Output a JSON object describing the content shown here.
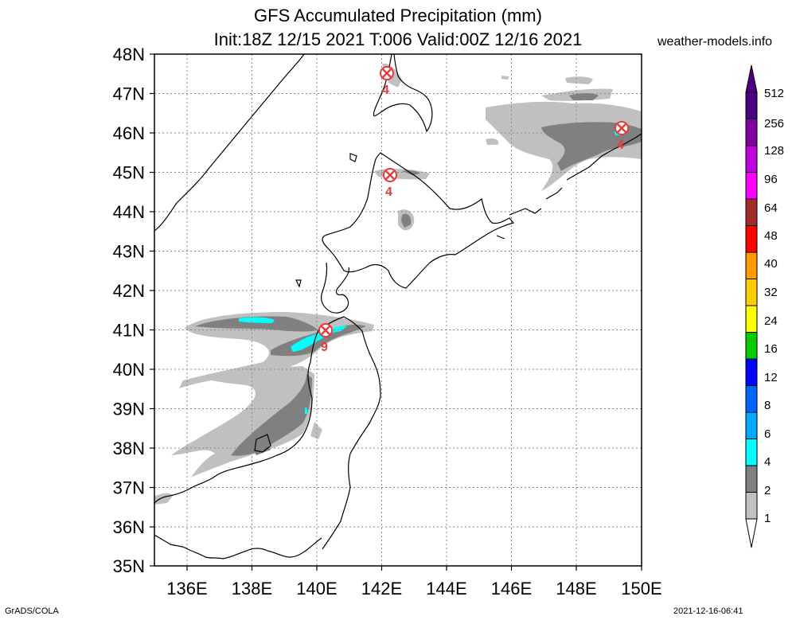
{
  "title_line1": "GFS Accumulated Precipitation (mm)",
  "title_line2": "Init:18Z 12/15 2021 T:006 Valid:00Z 12/16 2021",
  "site": "weather-models.info",
  "footer_left": "GrADS/COLA",
  "footer_right": "2021-12-16-06:41",
  "lat_labels": [
    "48N",
    "47N",
    "46N",
    "45N",
    "44N",
    "43N",
    "42N",
    "41N",
    "40N",
    "39N",
    "38N",
    "37N",
    "36N",
    "35N"
  ],
  "lon_labels": [
    "136E",
    "138E",
    "140E",
    "142E",
    "144E",
    "146E",
    "148E",
    "150E"
  ],
  "colorbar": {
    "labels": [
      "512",
      "256",
      "128",
      "96",
      "64",
      "48",
      "40",
      "32",
      "24",
      "16",
      "12",
      "8",
      "6",
      "4",
      "2",
      "1"
    ],
    "colors": [
      "#4b0082",
      "#8000a0",
      "#c000e0",
      "#ff00ff",
      "#a52a2a",
      "#ff0000",
      "#ff9900",
      "#ffcc00",
      "#ffff00",
      "#00cc00",
      "#0000ff",
      "#0066ff",
      "#00aaff",
      "#00ffff",
      "#808080",
      "#c0c0c0"
    ]
  },
  "markers": [
    {
      "label": "4",
      "lon": 142.2,
      "lat": 47.5
    },
    {
      "label": "4",
      "lon": 142.25,
      "lat": 44.9
    },
    {
      "label": "9",
      "lon": 140.25,
      "lat": 40.95
    },
    {
      "label": "4",
      "lon": 149.4,
      "lat": 46.1
    }
  ]
}
